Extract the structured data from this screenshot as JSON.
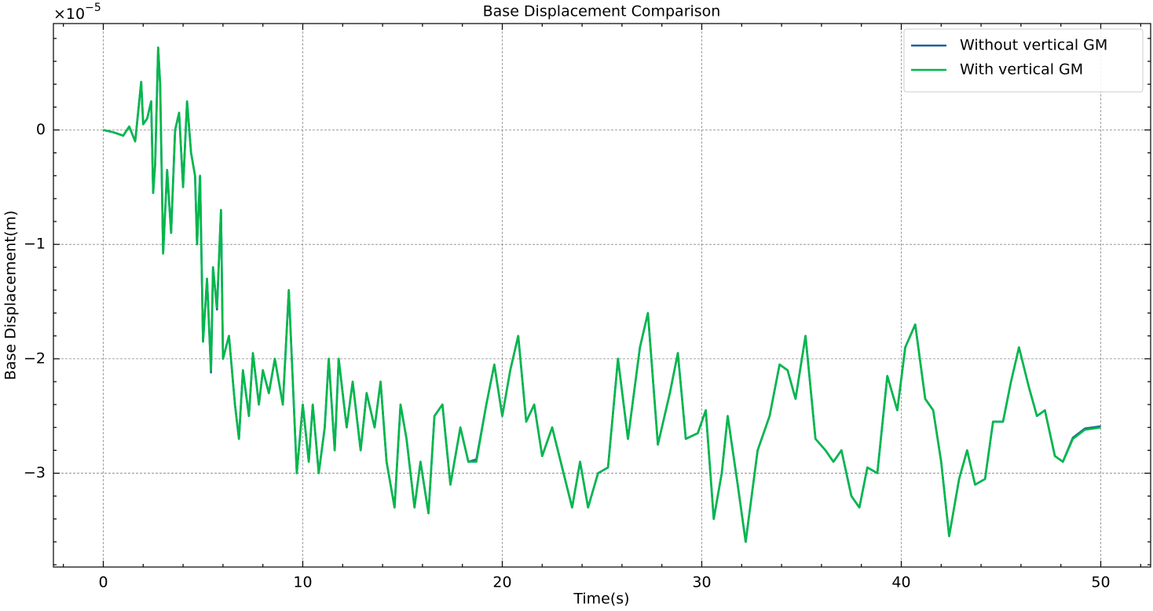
{
  "chart_data": {
    "type": "line",
    "title": "Base Displacement Comparison",
    "xlabel": "Time(s)",
    "ylabel": "Base Displacement(m)",
    "y_offset_label": {
      "base": "×10",
      "exponent": "−5"
    },
    "x": [
      0,
      0.5,
      1,
      1.3,
      1.6,
      1.9,
      2.0,
      2.2,
      2.4,
      2.5,
      2.6,
      2.75,
      2.85,
      3.0,
      3.2,
      3.4,
      3.6,
      3.8,
      4.0,
      4.2,
      4.4,
      4.6,
      4.7,
      4.85,
      5.0,
      5.2,
      5.4,
      5.5,
      5.7,
      5.9,
      6.0,
      6.3,
      6.6,
      6.8,
      7.0,
      7.3,
      7.5,
      7.8,
      8.0,
      8.3,
      8.6,
      9.0,
      9.3,
      9.5,
      9.7,
      10.0,
      10.3,
      10.5,
      10.8,
      11.1,
      11.3,
      11.6,
      11.8,
      12.2,
      12.5,
      12.9,
      13.2,
      13.6,
      13.9,
      14.2,
      14.6,
      14.9,
      15.2,
      15.6,
      15.9,
      16.3,
      16.6,
      17.0,
      17.4,
      17.9,
      18.3,
      18.7,
      19.2,
      19.6,
      20.0,
      20.4,
      20.8,
      21.2,
      21.6,
      22.0,
      22.5,
      23.0,
      23.5,
      23.9,
      24.3,
      24.8,
      25.3,
      25.8,
      26.3,
      26.9,
      27.3,
      27.8,
      28.4,
      28.8,
      29.2,
      29.8,
      30.2,
      30.6,
      31.0,
      31.3,
      31.8,
      32.2,
      32.8,
      33.4,
      33.9,
      34.3,
      34.7,
      35.2,
      35.7,
      36.2,
      36.6,
      37.0,
      37.5,
      37.9,
      38.3,
      38.8,
      39.3,
      39.8,
      40.2,
      40.7,
      41.2,
      41.6,
      42.0,
      42.4,
      42.9,
      43.3,
      43.7,
      44.2,
      44.6,
      45.1,
      45.5,
      45.9,
      46.4,
      46.8,
      47.2,
      47.7,
      48.1,
      48.6,
      49.2,
      50.0
    ],
    "series": [
      {
        "name": "Without vertical GM",
        "color": "#1f5fa6",
        "values": [
          0,
          -0.02,
          -0.05,
          0.03,
          -0.1,
          0.42,
          0.05,
          0.1,
          0.25,
          -0.55,
          -0.3,
          0.72,
          0.4,
          -1.08,
          -0.35,
          -0.9,
          0.0,
          0.15,
          -0.5,
          0.25,
          -0.2,
          -0.4,
          -1.0,
          -0.4,
          -1.85,
          -1.3,
          -2.12,
          -1.2,
          -1.57,
          -0.7,
          -2.0,
          -1.8,
          -2.4,
          -2.7,
          -2.1,
          -2.5,
          -1.95,
          -2.4,
          -2.1,
          -2.3,
          -2.0,
          -2.4,
          -1.4,
          -2.2,
          -3.0,
          -2.4,
          -2.9,
          -2.4,
          -3.0,
          -2.6,
          -2.0,
          -2.8,
          -2.0,
          -2.6,
          -2.2,
          -2.8,
          -2.3,
          -2.6,
          -2.2,
          -2.9,
          -3.3,
          -2.4,
          -2.7,
          -3.3,
          -2.9,
          -3.35,
          -2.5,
          -2.4,
          -3.1,
          -2.6,
          -2.9,
          -2.88,
          -2.4,
          -2.05,
          -2.5,
          -2.1,
          -1.8,
          -2.55,
          -2.4,
          -2.85,
          -2.6,
          -2.95,
          -3.3,
          -2.9,
          -3.3,
          -3.0,
          -2.95,
          -2.0,
          -2.7,
          -1.9,
          -1.6,
          -2.75,
          -2.3,
          -1.95,
          -2.7,
          -2.65,
          -2.45,
          -3.4,
          -3.0,
          -2.5,
          -3.1,
          -3.6,
          -2.8,
          -2.5,
          -2.05,
          -2.1,
          -2.35,
          -1.8,
          -2.7,
          -2.8,
          -2.9,
          -2.8,
          -3.2,
          -3.3,
          -2.95,
          -3.0,
          -2.15,
          -2.45,
          -1.9,
          -1.7,
          -2.35,
          -2.45,
          -2.9,
          -3.55,
          -3.05,
          -2.8,
          -3.1,
          -3.05,
          -2.55,
          -2.55,
          -2.2,
          -1.9,
          -2.25,
          -2.5,
          -2.45,
          -2.85,
          -2.9,
          -2.69,
          -2.61,
          -2.59
        ]
      },
      {
        "name": "With vertical GM",
        "color": "#00b84a",
        "values": [
          0,
          -0.02,
          -0.05,
          0.03,
          -0.1,
          0.42,
          0.05,
          0.1,
          0.25,
          -0.55,
          -0.3,
          0.72,
          0.4,
          -1.08,
          -0.35,
          -0.9,
          0.0,
          0.15,
          -0.5,
          0.25,
          -0.2,
          -0.4,
          -1.0,
          -0.4,
          -1.85,
          -1.3,
          -2.1,
          -1.2,
          -1.55,
          -0.7,
          -2.0,
          -1.8,
          -2.4,
          -2.7,
          -2.1,
          -2.5,
          -1.95,
          -2.4,
          -2.1,
          -2.3,
          -2.0,
          -2.4,
          -1.4,
          -2.2,
          -3.0,
          -2.4,
          -2.9,
          -2.4,
          -3.0,
          -2.6,
          -2.0,
          -2.8,
          -2.0,
          -2.6,
          -2.2,
          -2.8,
          -2.3,
          -2.6,
          -2.2,
          -2.9,
          -3.3,
          -2.4,
          -2.7,
          -3.3,
          -2.9,
          -3.35,
          -2.5,
          -2.4,
          -3.1,
          -2.6,
          -2.9,
          -2.9,
          -2.4,
          -2.05,
          -2.5,
          -2.1,
          -1.8,
          -2.55,
          -2.4,
          -2.85,
          -2.6,
          -2.95,
          -3.3,
          -2.9,
          -3.3,
          -3.0,
          -2.95,
          -2.0,
          -2.7,
          -1.9,
          -1.6,
          -2.75,
          -2.3,
          -1.95,
          -2.7,
          -2.65,
          -2.45,
          -3.4,
          -3.0,
          -2.5,
          -3.1,
          -3.6,
          -2.8,
          -2.5,
          -2.05,
          -2.1,
          -2.35,
          -1.8,
          -2.7,
          -2.8,
          -2.9,
          -2.8,
          -3.2,
          -3.3,
          -2.95,
          -3.0,
          -2.15,
          -2.45,
          -1.9,
          -1.7,
          -2.35,
          -2.45,
          -2.9,
          -3.55,
          -3.05,
          -2.8,
          -3.1,
          -3.05,
          -2.55,
          -2.55,
          -2.2,
          -1.9,
          -2.25,
          -2.5,
          -2.45,
          -2.85,
          -2.9,
          -2.7,
          -2.62,
          -2.6
        ]
      }
    ],
    "xlim": [
      -2.5,
      52.5
    ],
    "ylim": [
      -3.82,
      0.93
    ],
    "xticks": [
      0,
      10,
      20,
      30,
      40,
      50
    ],
    "yticks": [
      {
        "value": -3,
        "label": "−3"
      },
      {
        "value": -2,
        "label": "−2"
      },
      {
        "value": -1,
        "label": "−1"
      },
      0
    ],
    "xticks_minor": [
      -2,
      2,
      4,
      6,
      8,
      12,
      14,
      16,
      18,
      22,
      24,
      26,
      28,
      32,
      34,
      36,
      38,
      42,
      44,
      46,
      48,
      52
    ],
    "yticks_minor": [
      -3.8,
      -3.6,
      -3.4,
      -3.2,
      -2.8,
      -2.6,
      -2.4,
      -2.2,
      -1.8,
      -1.6,
      -1.4,
      -1.2,
      -0.8,
      -0.6,
      -0.4,
      -0.2,
      0.2,
      0.4,
      0.6,
      0.8
    ],
    "grid": true,
    "legend": "upper right"
  }
}
